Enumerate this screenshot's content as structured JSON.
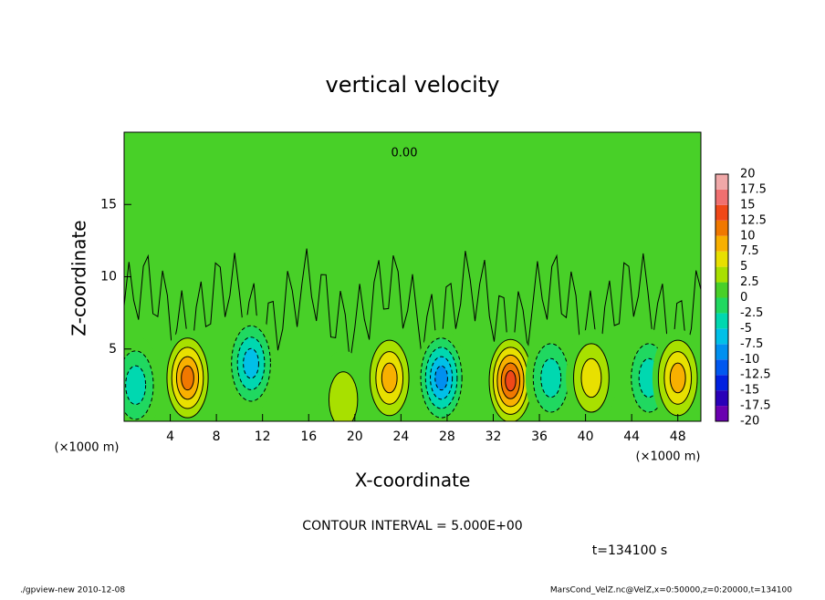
{
  "chart_data": {
    "type": "contour",
    "title": "vertical velocity",
    "x_label": "X-coordinate",
    "y_label": "Z-coordinate",
    "y_unit": "(×1000 m)",
    "x_unit": "(×1000 m)",
    "xlim": [
      0,
      50
    ],
    "ylim": [
      0,
      20
    ],
    "xticks": [
      4,
      8,
      12,
      16,
      20,
      24,
      28,
      32,
      36,
      40,
      44,
      48
    ],
    "yticks": [
      5,
      10,
      15
    ],
    "levels": [
      -20,
      -17.5,
      -15,
      -12.5,
      -10,
      -7.5,
      -5,
      -2.5,
      0,
      2.5,
      5,
      7.5,
      10,
      12.5,
      15,
      17.5,
      20
    ],
    "colors": [
      "#6a00b0",
      "#2a00b8",
      "#0020e0",
      "#0058f0",
      "#0090f0",
      "#00c0e8",
      "#00d8b0",
      "#20d860",
      "#48d028",
      "#a8e000",
      "#e8e000",
      "#f8b000",
      "#f07800",
      "#f04818",
      "#f07070",
      "#f0a8a8"
    ],
    "cells": [
      {
        "x": 5.5,
        "z": 3,
        "value": 10
      },
      {
        "x": 1,
        "z": 2.5,
        "value": -5
      },
      {
        "x": 11,
        "z": 4,
        "value": -7.5
      },
      {
        "x": 19,
        "z": 1.5,
        "value": 2.5
      },
      {
        "x": 23,
        "z": 3,
        "value": 7.5
      },
      {
        "x": 27.5,
        "z": 3,
        "value": -10
      },
      {
        "x": 33.5,
        "z": 2.8,
        "value": 12.5
      },
      {
        "x": 37,
        "z": 3,
        "value": -5
      },
      {
        "x": 40.5,
        "z": 3,
        "value": 5
      },
      {
        "x": 45.5,
        "z": 3,
        "value": -5
      },
      {
        "x": 48,
        "z": 3,
        "value": 7.5
      }
    ],
    "contour_label": "0.00",
    "contour_interval": "CONTOUR INTERVAL = 5.000E+00",
    "time": "t=134100 s",
    "footer_left": "./gpview-new  2010-12-08",
    "footer_right": "MarsCond_VelZ.nc@VelZ,x=0:50000,z=0:20000,t=134100"
  }
}
